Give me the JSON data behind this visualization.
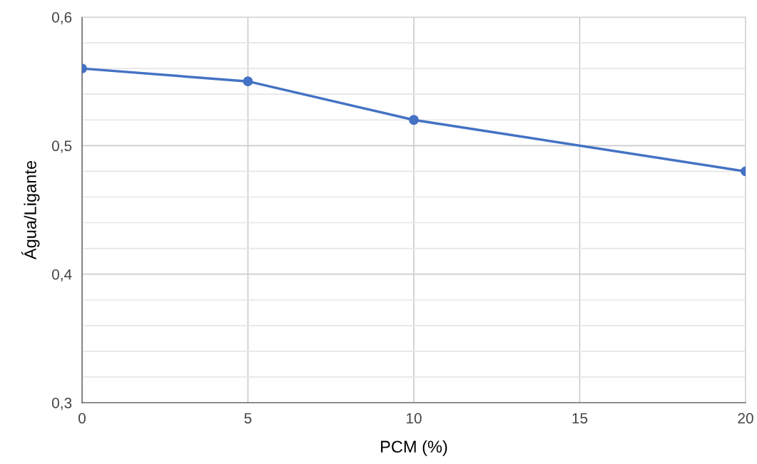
{
  "chart_data": {
    "type": "line",
    "xlabel": "PCM (%)",
    "ylabel": "Água/Ligante",
    "x": [
      0,
      5,
      10,
      20
    ],
    "series": [
      {
        "color": "#4472c4",
        "values": [
          0.56,
          0.55,
          0.52,
          0.48
        ]
      }
    ],
    "xlim": [
      0,
      20
    ],
    "xticks": [
      0,
      5,
      10,
      15,
      20
    ],
    "ylim": [
      0.3,
      0.6
    ],
    "yticks": [
      {
        "value": 0.3,
        "label": "0,3"
      },
      {
        "value": 0.32,
        "label": null
      },
      {
        "value": 0.34,
        "label": null
      },
      {
        "value": 0.36,
        "label": null
      },
      {
        "value": 0.38,
        "label": null
      },
      {
        "value": 0.4,
        "label": "0,4"
      },
      {
        "value": 0.42,
        "label": null
      },
      {
        "value": 0.44,
        "label": null
      },
      {
        "value": 0.46,
        "label": null
      },
      {
        "value": 0.48,
        "label": null
      },
      {
        "value": 0.5,
        "label": "0,5"
      },
      {
        "value": 0.52,
        "label": null
      },
      {
        "value": 0.54,
        "label": null
      },
      {
        "value": 0.56,
        "label": null
      },
      {
        "value": 0.58,
        "label": null
      },
      {
        "value": 0.6,
        "label": "0,6"
      }
    ],
    "grid": true,
    "marker": "circle",
    "line_style": "solid"
  }
}
